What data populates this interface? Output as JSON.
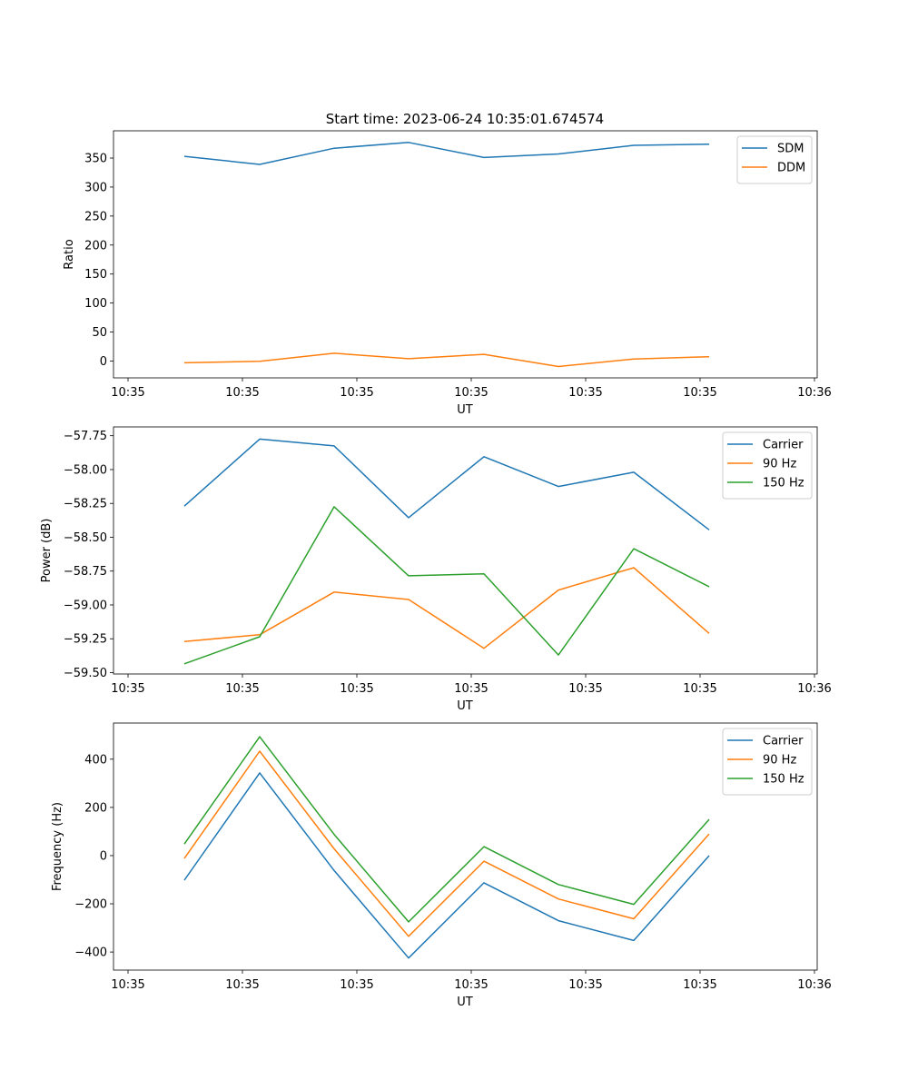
{
  "figure": {
    "title": "Start time: 2023-06-24 10:35:01.674574"
  },
  "chart_data": [
    {
      "type": "line",
      "title": "Start time: 2023-06-24 10:35:01.674574",
      "xlabel": "UT",
      "ylabel": "Ratio",
      "x_tick_labels": [
        "10:35",
        "10:35",
        "10:35",
        "10:35",
        "10:35",
        "10:35",
        "10:36"
      ],
      "y_ticks": [
        0,
        50,
        100,
        150,
        200,
        250,
        300,
        350
      ],
      "ylim": [
        -29,
        397
      ],
      "legend_position": "top-right",
      "grid": false,
      "series": [
        {
          "name": "SDM",
          "color": "#1f77b4",
          "values": [
            353,
            339,
            367,
            377,
            351,
            357,
            372,
            374
          ]
        },
        {
          "name": "DDM",
          "color": "#ff7f0e",
          "values": [
            -3,
            -0.5,
            13.5,
            4,
            11.5,
            -9.5,
            3.5,
            7.5
          ]
        }
      ]
    },
    {
      "type": "line",
      "xlabel": "UT",
      "ylabel": "Power (dB)",
      "x_tick_labels": [
        "10:35",
        "10:35",
        "10:35",
        "10:35",
        "10:35",
        "10:35",
        "10:36"
      ],
      "y_ticks": [
        -59.5,
        -59.25,
        -59.0,
        -58.75,
        -58.5,
        -58.25,
        -58.0,
        -57.75
      ],
      "y_tick_labels": [
        "−59.50",
        "−59.25",
        "−59.00",
        "−58.75",
        "−58.50",
        "−58.25",
        "−58.00",
        "−57.75"
      ],
      "ylim": [
        -59.51,
        -57.685
      ],
      "legend_position": "top-right",
      "grid": false,
      "series": [
        {
          "name": "Carrier",
          "color": "#1f77b4",
          "values": [
            -58.27,
            -57.775,
            -57.825,
            -58.355,
            -57.905,
            -58.125,
            -58.02,
            -58.445
          ]
        },
        {
          "name": "90 Hz",
          "color": "#ff7f0e",
          "values": [
            -59.27,
            -59.22,
            -58.905,
            -58.96,
            -59.32,
            -58.89,
            -58.725,
            -59.21
          ]
        },
        {
          "name": "150 Hz",
          "color": "#2ca02c",
          "values": [
            -59.435,
            -59.235,
            -58.275,
            -58.785,
            -58.77,
            -59.37,
            -58.585,
            -58.865
          ]
        }
      ]
    },
    {
      "type": "line",
      "xlabel": "UT",
      "ylabel": "Frequency (Hz)",
      "x_tick_labels": [
        "10:35",
        "10:35",
        "10:35",
        "10:35",
        "10:35",
        "10:35",
        "10:36"
      ],
      "y_ticks": [
        -400,
        -200,
        0,
        200,
        400
      ],
      "y_tick_labels": [
        "−400",
        "−200",
        "0",
        "200",
        "400"
      ],
      "ylim": [
        -475,
        550
      ],
      "legend_position": "top-right",
      "grid": false,
      "series": [
        {
          "name": "Carrier",
          "color": "#1f77b4",
          "values": [
            -102,
            343,
            -62,
            -425,
            -113,
            -270,
            -352,
            0
          ]
        },
        {
          "name": "90 Hz",
          "color": "#ff7f0e",
          "values": [
            -12,
            433,
            28,
            -335,
            -23,
            -180,
            -262,
            90
          ]
        },
        {
          "name": "150 Hz",
          "color": "#2ca02c",
          "values": [
            48,
            493,
            88,
            -275,
            37,
            -120,
            -202,
            150
          ]
        }
      ]
    }
  ]
}
